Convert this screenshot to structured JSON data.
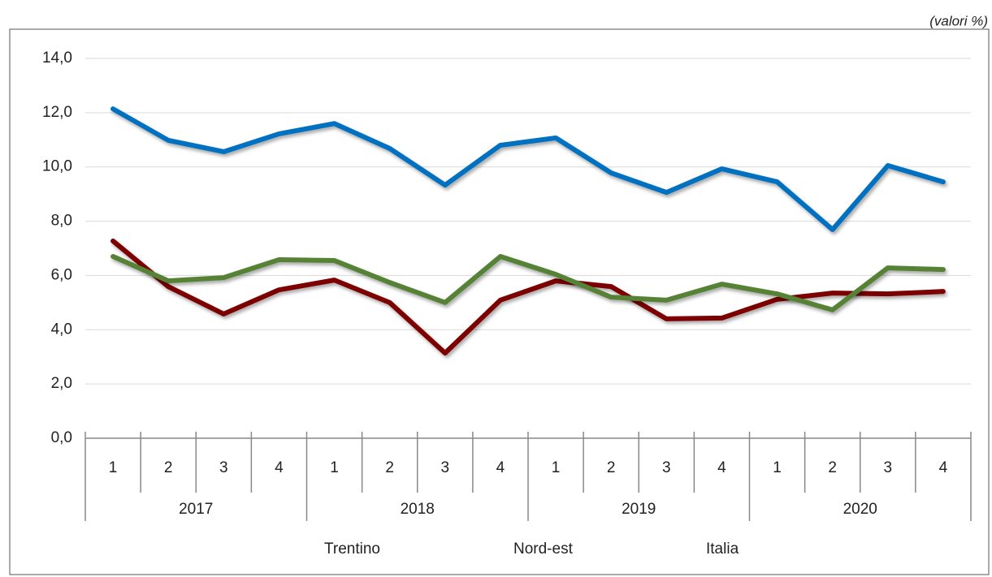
{
  "chart_data": {
    "type": "line",
    "unit_note": "(valori %)",
    "categories": [
      "1",
      "2",
      "3",
      "4",
      "1",
      "2",
      "3",
      "4",
      "1",
      "2",
      "3",
      "4",
      "1",
      "2",
      "3",
      "4"
    ],
    "category_groups": [
      "2017",
      "2018",
      "2019",
      "2020"
    ],
    "series": [
      {
        "name": "Trentino",
        "color": "#7b0000",
        "values": [
          7.27,
          5.59,
          4.58,
          5.47,
          5.83,
          5.0,
          3.14,
          5.09,
          5.8,
          5.59,
          4.4,
          4.43,
          5.12,
          5.35,
          5.32,
          5.41
        ]
      },
      {
        "name": "Nord-est",
        "color": "#548235",
        "values": [
          6.7,
          5.8,
          5.92,
          6.58,
          6.55,
          5.74,
          5.0,
          6.7,
          6.04,
          5.2,
          5.09,
          5.68,
          5.32,
          4.73,
          6.28,
          6.22
        ]
      },
      {
        "name": "Italia",
        "color": "#0070c0",
        "values": [
          12.14,
          10.98,
          10.56,
          11.22,
          11.6,
          10.68,
          9.33,
          10.8,
          11.07,
          9.78,
          9.06,
          9.93,
          9.45,
          7.69,
          10.05,
          9.45
        ]
      }
    ],
    "ylim": [
      0,
      14
    ],
    "yticks": [
      {
        "value": 0,
        "label": "0,0"
      },
      {
        "value": 2,
        "label": "2,0"
      },
      {
        "value": 4,
        "label": "4,0"
      },
      {
        "value": 6,
        "label": "6,0"
      },
      {
        "value": 8,
        "label": "8,0"
      },
      {
        "value": 10,
        "label": "10,0"
      },
      {
        "value": 12,
        "label": "12,0"
      },
      {
        "value": 14,
        "label": "14,0"
      }
    ],
    "grid": true,
    "legend": "bottom"
  }
}
